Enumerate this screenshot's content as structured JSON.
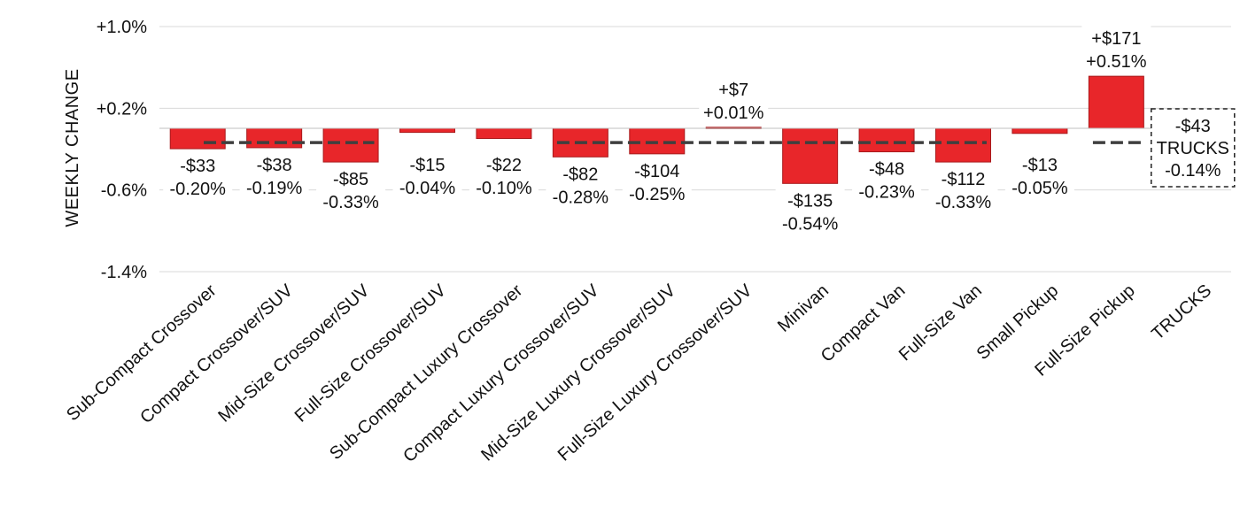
{
  "chart_data": {
    "type": "bar",
    "ylabel": "WEEKLY CHANGE",
    "ylim": [
      -1.4,
      1.0
    ],
    "yticks": [
      "+1.0%",
      "+0.2%",
      "-0.6%",
      "-1.4%"
    ],
    "ytick_values": [
      1.0,
      0.2,
      -0.6,
      -1.4
    ],
    "grid": true,
    "categories": [
      "Sub-Compact Crossover",
      "Compact Crossover/SUV",
      "Mid-Size Crossover/SUV",
      "Full-Size Crossover/SUV",
      "Sub-Compact Luxury Crossover",
      "Compact Luxury Crossover/SUV",
      "Mid-Size Luxury Crossover/SUV",
      "Full-Size Luxury Crossover/SUV",
      "Minivan",
      "Compact Van",
      "Full-Size Van",
      "Small Pickup",
      "Full-Size Pickup",
      "TRUCKS"
    ],
    "values": [
      -0.2,
      -0.19,
      -0.33,
      -0.04,
      -0.1,
      -0.28,
      -0.25,
      0.01,
      -0.54,
      -0.23,
      -0.33,
      -0.05,
      0.51,
      null
    ],
    "dollar_labels": [
      "-$33",
      "-$38",
      "-$85",
      "-$15",
      "-$22",
      "-$82",
      "-$104",
      "+$7",
      "-$135",
      "-$48",
      "-$112",
      "-$13",
      "+$171",
      "-$43"
    ],
    "percent_labels": [
      "-0.20%",
      "-0.19%",
      "-0.33%",
      "-0.04%",
      "-0.10%",
      "-0.28%",
      "-0.25%",
      "+0.01%",
      "-0.54%",
      "-0.23%",
      "-0.33%",
      "-0.05%",
      "+0.51%",
      "-0.14%"
    ],
    "reference_line": {
      "value": -0.14,
      "style": "dashed"
    },
    "summary": {
      "category": "TRUCKS",
      "dollar": "-$43",
      "name": "TRUCKS",
      "percent": "-0.14%"
    },
    "colors": {
      "bar": "#e8262a",
      "bar_edge": "#a81a1c",
      "reference": "#3f3f3f",
      "grid": "#d9d9d9"
    }
  }
}
